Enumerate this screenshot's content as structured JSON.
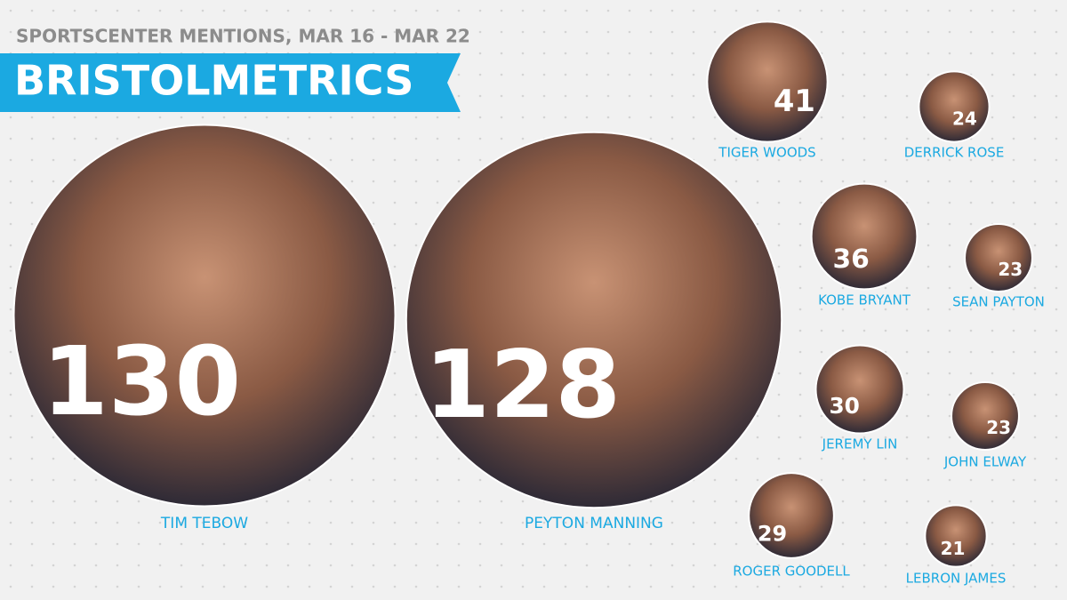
{
  "chart_data": {
    "type": "bubble",
    "subtitle": "SPORTSCENTER MENTIONS, MAR 16 - MAR 22",
    "title": "BRISTOLMETRICS",
    "categories": [
      "TIM TEBOW",
      "PEYTON MANNING",
      "TIGER WOODS",
      "DERRICK ROSE",
      "KOBE BRYANT",
      "SEAN PAYTON",
      "JEREMY LIN",
      "JOHN ELWAY",
      "ROGER GOODELL",
      "LEBRON JAMES"
    ],
    "values": [
      130,
      128,
      41,
      24,
      36,
      23,
      30,
      23,
      29,
      21
    ],
    "color": "#1ba9e1"
  }
}
